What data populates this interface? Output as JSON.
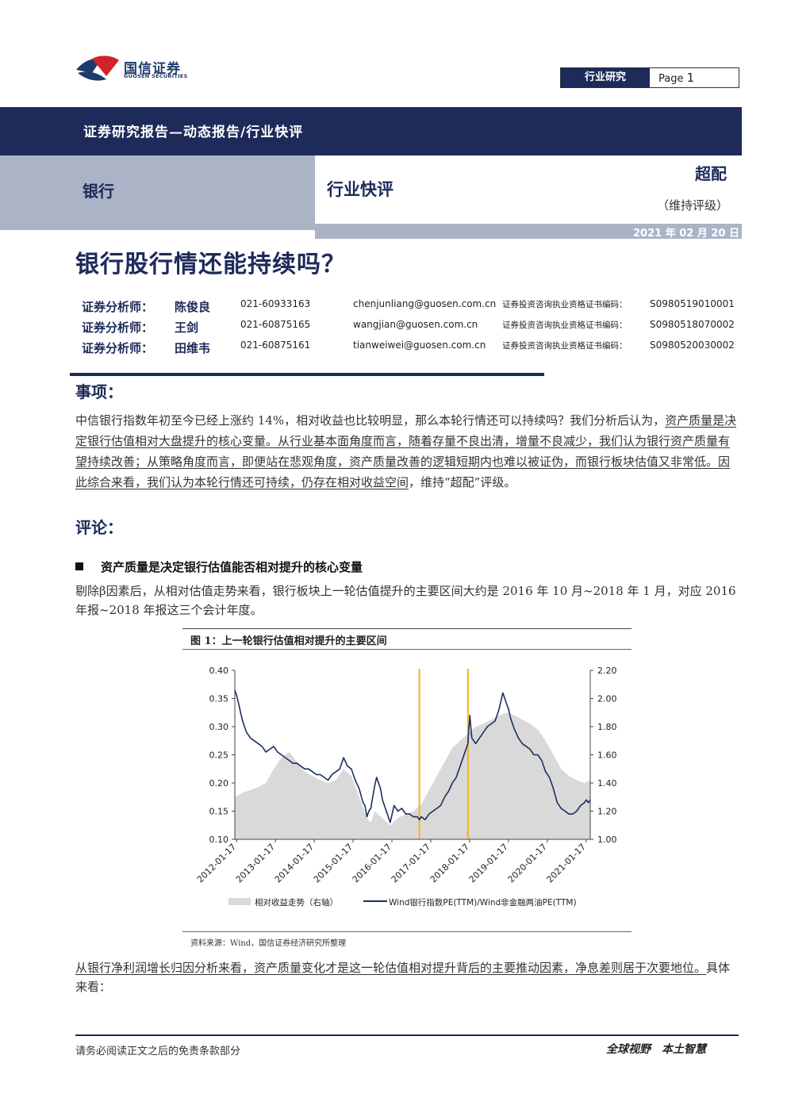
{
  "header": {
    "logo_cn": "国信证券",
    "logo_en": "GUOSEN SECURITIES",
    "section_tag": "行业研究",
    "page_label": "Page",
    "page_num": "1"
  },
  "banner": {
    "report_series": "证券研究报告—动态报告/行业快评",
    "sector": "银行",
    "report_type": "行业快评",
    "rating": "超配",
    "rating_note": "（维持评级）",
    "date": "2021 年 02 月 20 日"
  },
  "title": "银行股行情还能持续吗？",
  "analysts": [
    {
      "label": "证券分析师：",
      "name": "陈俊良",
      "phone": "021-60933163",
      "email": "chenjunliang@guosen.com.cn",
      "cert_label": "证券投资咨询执业资格证书编码：",
      "cert": "S0980519010001"
    },
    {
      "label": "证券分析师：",
      "name": "王剑",
      "phone": "021-60875165",
      "email": "wangjian@guosen.com.cn",
      "cert_label": "证券投资咨询执业资格证书编码：",
      "cert": "S0980518070002"
    },
    {
      "label": "证券分析师：",
      "name": "田维韦",
      "phone": "021-60875161",
      "email": "tianweiwei@guosen.com.cn",
      "cert_label": "证券投资咨询执业资格证书编码：",
      "cert": "S0980520030002"
    }
  ],
  "matters": {
    "heading": "事项：",
    "text_plain": "中信银行指数年初至今已经上涨约 14%，相对收益也比较明显，那么本轮行情还可以持续吗？我们分析后认为，",
    "text_underlined": "资产质量是决定银行估值相对大盘提升的核心变量。从行业基本面角度而言，随着存量不良出清，增量不良减少，我们认为银行资产质量有望持续改善；从策略角度而言，即便站在悲观角度，资产质量改善的逻辑短期内也难以被证伪，而银行板块估值又非常低。因此综合来看，我们认为本轮行情还可持续，仍存在相对收益空间",
    "text_tail": "，维持“超配”评级。"
  },
  "comment": {
    "heading": "评论：",
    "bullet": "资产质量是决定银行估值能否相对提升的核心变量",
    "para1": "剔除β因素后，从相对估值走势来看，银行板块上一轮估值提升的主要区间大约是 2016 年 10 月~2018 年 1 月，对应 2016 年报~2018 年报这三个会计年度。",
    "para2_underlined": "从银行净利润增长归因分析来看，资产质量变化才是这一轮估值相对提升背后的主要推动因素，净息差则居于次要地位。",
    "para2_tail": "具体来看："
  },
  "figure": {
    "title": "图 1：上一轮银行估值相对提升的主要区间",
    "source": "资料来源：Wind，国信证券经济研究所整理"
  },
  "chart_data": {
    "type": "line",
    "x_ticks": [
      "2012-01-17",
      "2013-01-17",
      "2014-01-17",
      "2015-01-17",
      "2016-01-17",
      "2017-01-17",
      "2018-01-17",
      "2019-01-17",
      "2020-01-17",
      "2021-01-17"
    ],
    "y_left": {
      "ticks": [
        "0.40",
        "0.35",
        "0.30",
        "0.25",
        "0.20",
        "0.15",
        "0.10"
      ],
      "range": [
        0.1,
        0.4
      ]
    },
    "y_right": {
      "ticks": [
        "2.20",
        "2.00",
        "1.80",
        "1.60",
        "1.40",
        "1.20",
        "1.00"
      ],
      "range": [
        1.0,
        2.2
      ]
    },
    "vertical_markers": [
      "2016-10",
      "2018-01"
    ],
    "marker_color": "#f2b51b",
    "legend": {
      "area_label": "相对收益走势（右轴）",
      "line_label": "Wind银行指数PE(TTM)/Wind非金融两油PE(TTM)"
    },
    "series": [
      {
        "name": "Wind银行指数PE(TTM)/Wind非金融两油PE(TTM)",
        "axis": "left",
        "color": "#1a2f5e",
        "x": [
          2012.0,
          2012.05,
          2012.1,
          2012.15,
          2012.2,
          2012.3,
          2012.4,
          2012.5,
          2012.6,
          2012.7,
          2012.8,
          2012.9,
          2013.0,
          2013.1,
          2013.2,
          2013.3,
          2013.4,
          2013.5,
          2013.6,
          2013.7,
          2013.8,
          2013.9,
          2014.0,
          2014.1,
          2014.2,
          2014.3,
          2014.4,
          2014.5,
          2014.6,
          2014.7,
          2014.8,
          2014.9,
          2015.0,
          2015.1,
          2015.2,
          2015.3,
          2015.35,
          2015.4,
          2015.45,
          2015.5,
          2015.55,
          2015.6,
          2015.65,
          2015.7,
          2015.75,
          2015.8,
          2015.9,
          2016.0,
          2016.05,
          2016.1,
          2016.2,
          2016.3,
          2016.4,
          2016.5,
          2016.6,
          2016.7,
          2016.75,
          2016.8,
          2016.9,
          2017.0,
          2017.1,
          2017.2,
          2017.3,
          2017.4,
          2017.5,
          2017.6,
          2017.7,
          2017.8,
          2017.9,
          2018.0,
          2018.05,
          2018.1,
          2018.15,
          2018.2,
          2018.3,
          2018.4,
          2018.5,
          2018.6,
          2018.7,
          2018.8,
          2018.9,
          2019.0,
          2019.05,
          2019.1,
          2019.2,
          2019.3,
          2019.4,
          2019.5,
          2019.6,
          2019.7,
          2019.8,
          2019.9,
          2020.0,
          2020.1,
          2020.2,
          2020.3,
          2020.4,
          2020.5,
          2020.6,
          2020.7,
          2020.8,
          2020.9,
          2021.0,
          2021.05,
          2021.1,
          2021.15
        ],
        "y": [
          0.365,
          0.355,
          0.34,
          0.325,
          0.31,
          0.29,
          0.28,
          0.275,
          0.27,
          0.265,
          0.255,
          0.26,
          0.265,
          0.255,
          0.25,
          0.245,
          0.24,
          0.235,
          0.235,
          0.23,
          0.225,
          0.225,
          0.22,
          0.215,
          0.215,
          0.21,
          0.205,
          0.215,
          0.22,
          0.225,
          0.245,
          0.23,
          0.225,
          0.205,
          0.19,
          0.165,
          0.16,
          0.14,
          0.15,
          0.155,
          0.175,
          0.195,
          0.21,
          0.2,
          0.19,
          0.17,
          0.15,
          0.13,
          0.145,
          0.16,
          0.15,
          0.155,
          0.145,
          0.145,
          0.14,
          0.14,
          0.135,
          0.14,
          0.135,
          0.145,
          0.15,
          0.155,
          0.16,
          0.175,
          0.185,
          0.2,
          0.21,
          0.23,
          0.25,
          0.27,
          0.32,
          0.28,
          0.275,
          0.27,
          0.28,
          0.29,
          0.3,
          0.305,
          0.31,
          0.33,
          0.36,
          0.34,
          0.33,
          0.315,
          0.295,
          0.28,
          0.27,
          0.265,
          0.26,
          0.25,
          0.25,
          0.24,
          0.22,
          0.21,
          0.19,
          0.165,
          0.155,
          0.15,
          0.145,
          0.145,
          0.15,
          0.16,
          0.165,
          0.17,
          0.165,
          0.17
        ]
      },
      {
        "name": "相对收益走势（右轴）",
        "axis": "right",
        "color": "#d9d9d9",
        "x": [
          2012.0,
          2012.2,
          2012.4,
          2012.6,
          2012.8,
          2013.0,
          2013.2,
          2013.4,
          2013.6,
          2013.8,
          2014.0,
          2014.2,
          2014.4,
          2014.6,
          2014.8,
          2015.0,
          2015.2,
          2015.4,
          2015.5,
          2015.6,
          2015.8,
          2016.0,
          2016.2,
          2016.4,
          2016.6,
          2016.8,
          2017.0,
          2017.2,
          2017.4,
          2017.6,
          2017.8,
          2018.0,
          2018.2,
          2018.4,
          2018.6,
          2018.8,
          2019.0,
          2019.2,
          2019.4,
          2019.6,
          2019.8,
          2020.0,
          2020.2,
          2020.4,
          2020.6,
          2020.8,
          2021.0,
          2021.15
        ],
        "y": [
          1.3,
          1.33,
          1.35,
          1.37,
          1.4,
          1.5,
          1.58,
          1.62,
          1.55,
          1.48,
          1.45,
          1.42,
          1.4,
          1.42,
          1.5,
          1.45,
          1.3,
          1.15,
          1.12,
          1.2,
          1.15,
          1.1,
          1.15,
          1.18,
          1.2,
          1.25,
          1.35,
          1.45,
          1.55,
          1.65,
          1.7,
          1.75,
          1.8,
          1.82,
          1.85,
          1.88,
          1.9,
          1.88,
          1.85,
          1.82,
          1.78,
          1.7,
          1.6,
          1.5,
          1.45,
          1.42,
          1.4,
          1.42
        ]
      }
    ]
  },
  "footer": {
    "disclaimer": "请务必阅读正文之后的免责条款部分",
    "slogan": "全球视野　本土智慧"
  },
  "colors": {
    "navy": "#1d2a5a",
    "grey_band": "#aab4c6",
    "logo_red": "#d2232a"
  }
}
